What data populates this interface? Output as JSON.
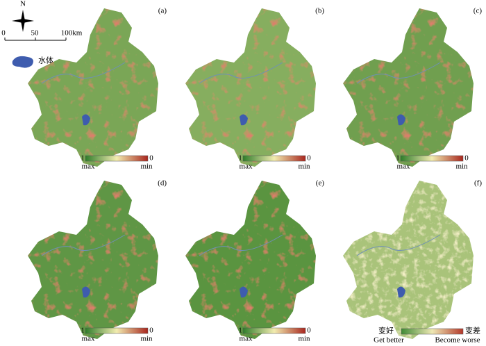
{
  "compass": "N",
  "scale_bar": {
    "labels": [
      "0",
      "50",
      "100km"
    ]
  },
  "water_legend": "水体",
  "panels": [
    {
      "label": "(a)",
      "legend": {
        "high": "1",
        "low": "0",
        "high_label": "max",
        "low_label": "min"
      }
    },
    {
      "label": "(b)",
      "legend": {
        "high": "1",
        "low": "0",
        "high_label": "max",
        "low_label": "min"
      }
    },
    {
      "label": "(c)",
      "legend": {
        "high": "1",
        "low": "0",
        "high_label": "max",
        "low_label": "min"
      }
    },
    {
      "label": "(d)",
      "legend": {
        "high": "1",
        "low": "0",
        "high_label": "max",
        "low_label": "min"
      }
    },
    {
      "label": "(e)",
      "legend": {
        "high": "1",
        "low": "0",
        "high_label": "max",
        "low_label": "min"
      }
    },
    {
      "label": "(f)",
      "legend": {
        "left": "变好",
        "right": "变差",
        "left_en": "Get better",
        "right_en": "Become worse"
      }
    }
  ]
}
